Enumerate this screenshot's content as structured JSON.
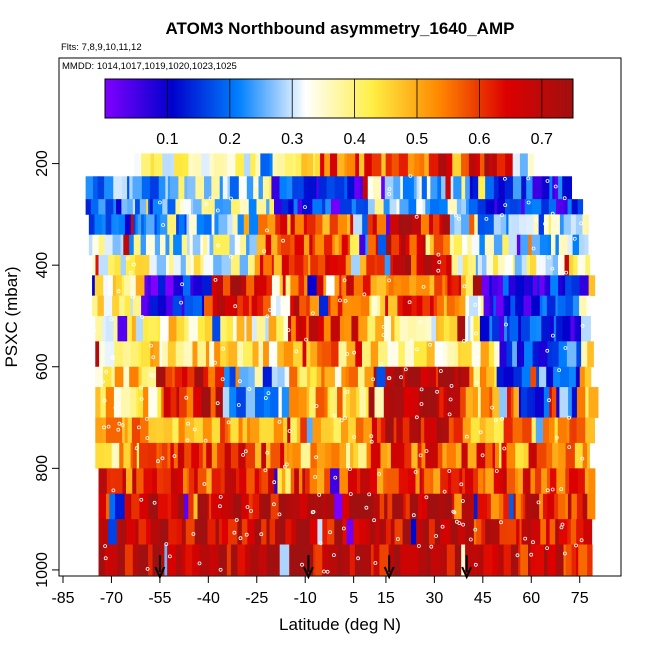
{
  "chart_data": {
    "type": "heatmap",
    "title": "ATOM3 Northbound asymmetry_1640_AMP",
    "flights_label": "Flts: 7,8,9,10,11,12",
    "dates_label": "MMDD: 1014,1017,1019,1020,1023,1025",
    "xlabel": "Latitude (deg N)",
    "ylabel": "PSXC (mbar)",
    "xlim": [
      -85,
      85
    ],
    "ylim": [
      1010,
      0
    ],
    "x_ticks": [
      -85,
      -70,
      -55,
      -40,
      -25,
      -10,
      5,
      15,
      30,
      45,
      60,
      75
    ],
    "y_ticks": [
      200,
      400,
      600,
      800,
      1000
    ],
    "colorbar": {
      "range": [
        0.0,
        0.75
      ],
      "ticks": [
        0.1,
        0.2,
        0.3,
        0.4,
        0.5,
        0.6,
        0.7
      ],
      "colors": [
        "#7f00ff",
        "#0000cc",
        "#0080ff",
        "#ffffff",
        "#ffee44",
        "#ff8800",
        "#dd0000",
        "#a01010"
      ]
    },
    "arrows_latitude": [
      -55,
      -9,
      16,
      40
    ],
    "pressure_bands": [
      {
        "p": [
          180,
          225
        ],
        "lat": [
          -63,
          60
        ],
        "base": 0.38
      },
      {
        "p": [
          225,
          270
        ],
        "lat": [
          -78,
          70
        ],
        "base": 0.26
      },
      {
        "p": [
          270,
          300
        ],
        "lat": [
          -78,
          75
        ],
        "base": 0.28
      },
      {
        "p": [
          300,
          340
        ],
        "lat": [
          -77,
          77
        ],
        "base": 0.27
      },
      {
        "p": [
          340,
          380
        ],
        "lat": [
          -77,
          77
        ],
        "base": 0.32
      },
      {
        "p": [
          380,
          420
        ],
        "lat": [
          -76,
          77
        ],
        "base": 0.35
      },
      {
        "p": [
          420,
          460
        ],
        "lat": [
          -76,
          78
        ],
        "base": 0.4
      },
      {
        "p": [
          460,
          500
        ],
        "lat": [
          -76,
          78
        ],
        "base": 0.38
      },
      {
        "p": [
          500,
          550
        ],
        "lat": [
          -75,
          78
        ],
        "base": 0.4
      },
      {
        "p": [
          550,
          600
        ],
        "lat": [
          -75,
          78
        ],
        "base": 0.42
      },
      {
        "p": [
          600,
          640
        ],
        "lat": [
          -75,
          78
        ],
        "base": 0.44
      },
      {
        "p": [
          640,
          700
        ],
        "lat": [
          -75,
          78
        ],
        "base": 0.48
      },
      {
        "p": [
          700,
          750
        ],
        "lat": [
          -75,
          78
        ],
        "base": 0.52
      },
      {
        "p": [
          750,
          800
        ],
        "lat": [
          -75,
          78
        ],
        "base": 0.58
      },
      {
        "p": [
          800,
          850
        ],
        "lat": [
          -74,
          78
        ],
        "base": 0.6
      },
      {
        "p": [
          850,
          900
        ],
        "lat": [
          -74,
          78
        ],
        "base": 0.62
      },
      {
        "p": [
          900,
          950
        ],
        "lat": [
          -74,
          78
        ],
        "base": 0.66
      },
      {
        "p": [
          950,
          1010
        ],
        "lat": [
          -74,
          78
        ],
        "base": 0.7
      }
    ],
    "regions": [
      {
        "lat": [
          -63,
          60
        ],
        "p": [
          180,
          225
        ],
        "value": 0.36
      },
      {
        "lat": [
          -48,
          -5
        ],
        "p": [
          190,
          220
        ],
        "value": 0.38
      },
      {
        "lat": [
          -5,
          30
        ],
        "p": [
          195,
          225
        ],
        "value": 0.58
      },
      {
        "lat": [
          30,
          55
        ],
        "p": [
          200,
          225
        ],
        "value": 0.66
      },
      {
        "lat": [
          -78,
          -50
        ],
        "p": [
          225,
          330
        ],
        "value": 0.2
      },
      {
        "lat": [
          -50,
          -20
        ],
        "p": [
          225,
          300
        ],
        "value": 0.32
      },
      {
        "lat": [
          -20,
          10
        ],
        "p": [
          230,
          300
        ],
        "value": 0.12
      },
      {
        "lat": [
          10,
          40
        ],
        "p": [
          230,
          300
        ],
        "value": 0.3
      },
      {
        "lat": [
          40,
          75
        ],
        "p": [
          230,
          300
        ],
        "value": 0.14
      },
      {
        "lat": [
          -25,
          5
        ],
        "p": [
          300,
          420
        ],
        "value": 0.58
      },
      {
        "lat": [
          10,
          35
        ],
        "p": [
          300,
          420
        ],
        "value": 0.64
      },
      {
        "lat": [
          -60,
          -40
        ],
        "p": [
          420,
          520
        ],
        "value": 0.1
      },
      {
        "lat": [
          -40,
          -20
        ],
        "p": [
          420,
          520
        ],
        "value": 0.66
      },
      {
        "lat": [
          -15,
          10
        ],
        "p": [
          440,
          560
        ],
        "value": 0.62
      },
      {
        "lat": [
          15,
          40
        ],
        "p": [
          420,
          500
        ],
        "value": 0.58
      },
      {
        "lat": [
          45,
          75
        ],
        "p": [
          430,
          560
        ],
        "value": 0.12
      },
      {
        "lat": [
          -70,
          -55
        ],
        "p": [
          560,
          700
        ],
        "value": 0.44
      },
      {
        "lat": [
          -55,
          -35
        ],
        "p": [
          600,
          720
        ],
        "value": 0.65
      },
      {
        "lat": [
          -35,
          -15
        ],
        "p": [
          620,
          720
        ],
        "value": 0.22
      },
      {
        "lat": [
          -15,
          0
        ],
        "p": [
          560,
          700
        ],
        "value": 0.5
      },
      {
        "lat": [
          10,
          40
        ],
        "p": [
          600,
          760
        ],
        "value": 0.68
      },
      {
        "lat": [
          50,
          75
        ],
        "p": [
          560,
          700
        ],
        "value": 0.18
      },
      {
        "lat": [
          -75,
          -60
        ],
        "p": [
          700,
          800
        ],
        "value": 0.5
      },
      {
        "lat": [
          -10,
          10
        ],
        "p": [
          700,
          820
        ],
        "value": 0.48
      },
      {
        "lat": [
          55,
          78
        ],
        "p": [
          720,
          820
        ],
        "value": 0.52
      },
      {
        "lat": [
          -60,
          40
        ],
        "p": [
          850,
          1010
        ],
        "value": 0.7
      },
      {
        "lat": [
          40,
          78
        ],
        "p": [
          880,
          1010
        ],
        "value": 0.66
      }
    ]
  }
}
